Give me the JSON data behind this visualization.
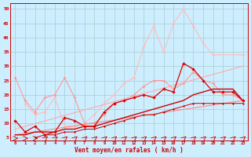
{
  "bg_color": "#cceeff",
  "grid_color": "#aacccc",
  "xlabel": "Vent moyen/en rafales ( km/h )",
  "xlim": [
    -0.5,
    23.5
  ],
  "ylim": [
    4,
    52
  ],
  "yticks": [
    5,
    10,
    15,
    20,
    25,
    30,
    35,
    40,
    45,
    50
  ],
  "xticks": [
    0,
    1,
    2,
    3,
    4,
    5,
    6,
    7,
    8,
    9,
    10,
    11,
    12,
    13,
    14,
    15,
    16,
    17,
    18,
    19,
    20,
    21,
    22,
    23
  ],
  "series": [
    {
      "x": [
        1,
        2,
        3,
        4,
        5,
        6,
        7,
        8,
        9,
        10,
        11,
        12,
        13,
        14,
        15,
        16,
        17,
        18,
        19,
        20,
        23
      ],
      "y": [
        17,
        13,
        14,
        19,
        9,
        9,
        10,
        13,
        17,
        20,
        24,
        26,
        37,
        44,
        35,
        45,
        50,
        44,
        38,
        34,
        34
      ],
      "color": "#ffbbbb",
      "lw": 0.8,
      "ms": 2.0,
      "zorder": 1
    },
    {
      "x": [
        0,
        1,
        2,
        3,
        4,
        5,
        6,
        7,
        8,
        9,
        10,
        11,
        12,
        13,
        14,
        15,
        16,
        17,
        18,
        19,
        20,
        21,
        22,
        23
      ],
      "y": [
        26,
        18,
        14,
        19,
        20,
        26,
        19,
        10,
        10,
        13,
        17,
        18,
        20,
        23,
        25,
        25,
        22,
        24,
        28,
        25,
        24,
        20,
        20,
        18
      ],
      "color": "#ff9999",
      "lw": 0.8,
      "ms": 2.0,
      "zorder": 2
    },
    {
      "x": [
        0,
        23
      ],
      "y": [
        8,
        30
      ],
      "color": "#ffaaaa",
      "lw": 0.8,
      "ms": 0,
      "zorder": 2
    },
    {
      "x": [
        0,
        23
      ],
      "y": [
        6,
        18
      ],
      "color": "#ff8888",
      "lw": 0.8,
      "ms": 0,
      "zorder": 2
    },
    {
      "x": [
        0,
        1,
        2,
        3,
        4,
        5,
        6,
        7,
        8,
        9,
        10,
        11,
        12,
        13,
        14,
        15,
        16,
        17,
        18,
        19,
        20,
        21,
        22,
        23
      ],
      "y": [
        11,
        7,
        9,
        6,
        7,
        12,
        11,
        9,
        9,
        14,
        17,
        18,
        19,
        20,
        19,
        22,
        21,
        31,
        29,
        25,
        21,
        21,
        21,
        18
      ],
      "color": "#dd0000",
      "lw": 0.9,
      "ms": 2.2,
      "zorder": 4
    },
    {
      "x": [
        0,
        1,
        2,
        3,
        4,
        5,
        6,
        7,
        8,
        9,
        10,
        11,
        12,
        13,
        14,
        15,
        16,
        17,
        18,
        19,
        20,
        21,
        22,
        23
      ],
      "y": [
        6,
        6,
        7,
        7,
        7,
        8,
        8,
        9,
        9,
        10,
        11,
        12,
        13,
        14,
        15,
        16,
        17,
        18,
        20,
        21,
        22,
        22,
        22,
        18
      ],
      "color": "#cc0000",
      "lw": 1.0,
      "ms": 0,
      "zorder": 3
    },
    {
      "x": [
        0,
        1,
        2,
        3,
        4,
        5,
        6,
        7,
        8,
        9,
        10,
        11,
        12,
        13,
        14,
        15,
        16,
        17,
        18,
        19,
        20,
        21,
        22,
        23
      ],
      "y": [
        null,
        null,
        5,
        6,
        6,
        7,
        7,
        8,
        8,
        9,
        10,
        11,
        12,
        13,
        13,
        14,
        15,
        16,
        17,
        17,
        17,
        17,
        17,
        17
      ],
      "color": "#cc0000",
      "lw": 0.7,
      "ms": 1.5,
      "zorder": 3
    }
  ]
}
